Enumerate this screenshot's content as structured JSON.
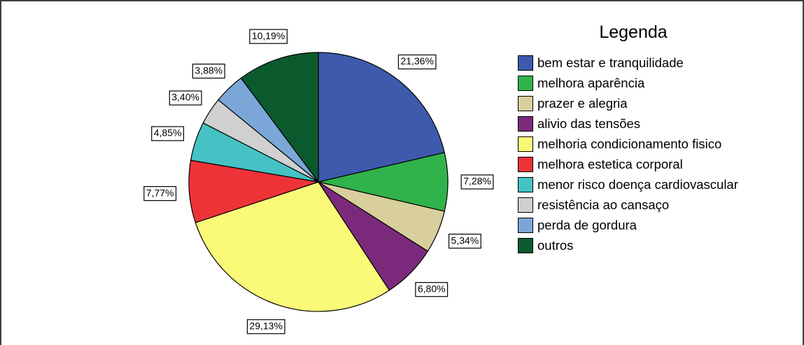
{
  "chart_data": {
    "type": "pie",
    "legend_title": "Legenda",
    "categories": [
      "bem estar e tranquilidade",
      "melhora aparência",
      "prazer e alegria",
      "alivio das tensões",
      "melhoria condicionamento fisico",
      "melhora estetica corporal",
      "menor risco doença cardiovascular",
      "resistência ao cansaço",
      "perda de gordura",
      "outros"
    ],
    "values": [
      21.36,
      7.28,
      5.34,
      6.8,
      29.13,
      7.77,
      4.85,
      3.4,
      3.88,
      10.19
    ],
    "value_labels": [
      "21,36%",
      "7,28%",
      "5,34%",
      "6,80%",
      "29,13%",
      "7,77%",
      "4,85%",
      "3,40%",
      "3,88%",
      "10,19%"
    ],
    "colors": [
      "#3d5aad",
      "#30b34a",
      "#d8cf9c",
      "#7b2a7b",
      "#fafa78",
      "#ee3338",
      "#45c2c4",
      "#d0d0d0",
      "#7aa7d8",
      "#0a5a2e"
    ],
    "legend": "right"
  }
}
